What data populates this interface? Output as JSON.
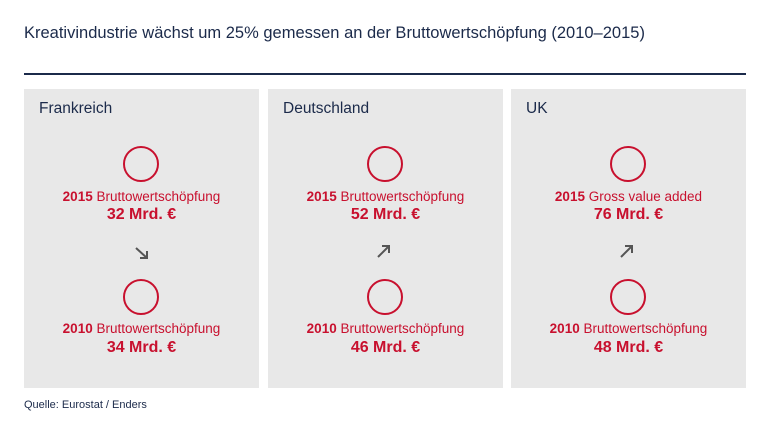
{
  "title": "Kreativindustrie wächst um 25% gemessen an der Bruttowertschöpfung (2010–2015)",
  "source": "Quelle: Eurostat / Enders",
  "colors": {
    "accent": "#c8102e",
    "navy": "#1b2a4a",
    "panel": "#e8e8e8",
    "arrow": "#555555"
  },
  "chart_data": {
    "type": "table",
    "unit": "Mrd. €",
    "series": [
      {
        "country": "Frankreich",
        "trend": "down",
        "y2015": {
          "year": "2015",
          "label": "Bruttowertschöpfung",
          "text": "32 Mrd. €",
          "value": 32
        },
        "y2010": {
          "year": "2010",
          "label": "Bruttowertschöpfung",
          "text": "34 Mrd. €",
          "value": 34
        }
      },
      {
        "country": "Deutschland",
        "trend": "up",
        "y2015": {
          "year": "2015",
          "label": "Bruttowertschöpfung",
          "text": "52 Mrd. €",
          "value": 52
        },
        "y2010": {
          "year": "2010",
          "label": "Bruttowertschöpfung",
          "text": "46 Mrd. €",
          "value": 46
        }
      },
      {
        "country": "UK",
        "trend": "up",
        "y2015": {
          "year": "2015",
          "label": "Gross value added",
          "text": "76 Mrd. €",
          "value": 76
        },
        "y2010": {
          "year": "2010",
          "label": "Bruttowertschöpfung",
          "text": "48 Mrd. €",
          "value": 48
        }
      }
    ]
  }
}
